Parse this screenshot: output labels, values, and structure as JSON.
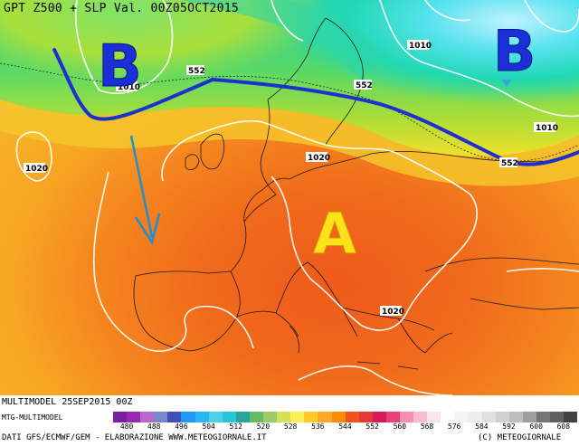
{
  "title": "GPT Z500 + SLP Val. 00Z05OCT2015",
  "markers": {
    "low_west": "B",
    "low_east": "B",
    "high_center": "A"
  },
  "isobars": [
    "1010",
    "1010",
    "1010",
    "1020",
    "1020",
    "1020"
  ],
  "gpt_labels": [
    "552",
    "552",
    "552"
  ],
  "footer": {
    "model_run": "MULTIMODEL 25SEP2015 00Z",
    "source_short": "MTG-MULTIMODEL",
    "data_credit": "DATI GFS/ECMWF/GEM - ELABORAZIONE WWW.METEOGIORNALE.IT",
    "copyright": "(C) METEOGIORNALE"
  },
  "scale": {
    "ticks": [
      "480",
      "488",
      "496",
      "504",
      "512",
      "520",
      "528",
      "536",
      "544",
      "552",
      "560",
      "568",
      "576",
      "584",
      "592",
      "600",
      "608"
    ],
    "colors": [
      "#7a1fa2",
      "#9c27b0",
      "#ba68c8",
      "#7986cb",
      "#3f51b5",
      "#2196f3",
      "#29b6f6",
      "#4dd0e1",
      "#26c6da",
      "#26a69a",
      "#66bb6a",
      "#9ccc65",
      "#d4e157",
      "#ffee58",
      "#ffca28",
      "#ffa726",
      "#fb8c00",
      "#f4511e",
      "#e53935",
      "#d81b60",
      "#ec407a",
      "#f48fb1",
      "#f8bbd0",
      "#fce4ec",
      "#ffffff",
      "#f5f5f5",
      "#eeeeee",
      "#e0e0e0",
      "#d0d0d0",
      "#bdbdbd",
      "#9e9e9e",
      "#757575",
      "#616161",
      "#424242"
    ]
  },
  "colors": {
    "jet_line": "#1e2fd0",
    "arrow": "#1e8fd0",
    "high_letter": "#ffe11a",
    "low_letter": "#1a2fd8"
  }
}
